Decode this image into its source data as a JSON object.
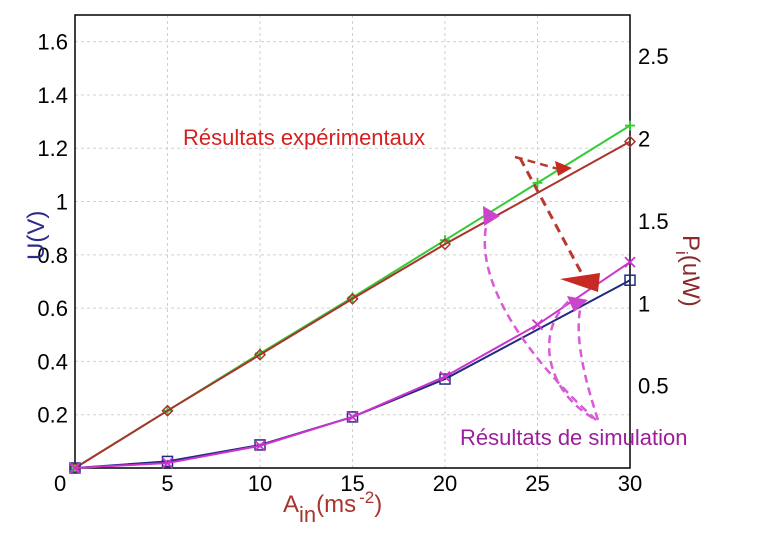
{
  "chart_data": {
    "type": "line",
    "x_axis": {
      "label_main": "A",
      "label_sub": "in",
      "label_unit": "(ms",
      "label_exp": "-2",
      "label_close": ")",
      "range": [
        0,
        30
      ],
      "ticks": [
        "0",
        "5",
        "10",
        "15",
        "20",
        "25",
        "30"
      ]
    },
    "y_left": {
      "label_main": "U",
      "label_unit": "(V)",
      "range": [
        0,
        1.7
      ],
      "ticks": [
        "0.2",
        "0.4",
        "0.6",
        "0.8",
        "1",
        "1.2",
        "1.4",
        "1.6"
      ]
    },
    "y_right": {
      "label_main": "P",
      "label_sub": "i",
      "label_unit": "(uW)",
      "range": [
        0,
        2.75
      ],
      "ticks": [
        "0.5",
        "1",
        "1.5",
        "2",
        "2.5"
      ]
    },
    "grid": true,
    "series": [
      {
        "key": "green_sim_voltage",
        "axis": "left",
        "color": "#33cc33",
        "marker": "plus",
        "x": [
          0,
          5,
          10,
          15,
          20,
          25,
          30
        ],
        "y": [
          0,
          0.215,
          0.43,
          0.64,
          0.855,
          1.07,
          1.285
        ]
      },
      {
        "key": "red_exp_voltage",
        "axis": "left",
        "color": "#a8342e",
        "marker": "diamond",
        "x": [
          0,
          5,
          10,
          15,
          20,
          30
        ],
        "y": [
          0,
          0.215,
          0.425,
          0.635,
          0.84,
          1.225
        ]
      },
      {
        "key": "navy_exp_power",
        "axis": "right",
        "color": "#1f2a80",
        "marker": "square",
        "x": [
          0,
          5,
          10,
          15,
          20,
          30
        ],
        "y": [
          0,
          0.04,
          0.14,
          0.31,
          0.54,
          1.14
        ]
      },
      {
        "key": "magenta_sim_power",
        "axis": "right",
        "color": "#cc33cc",
        "marker": "x",
        "x": [
          0,
          5,
          10,
          15,
          20,
          25,
          30
        ],
        "y": [
          0,
          0.03,
          0.135,
          0.31,
          0.555,
          0.87,
          1.25
        ]
      }
    ],
    "annotations": {
      "experimental": "Résultats expérimentaux",
      "simulation": "Résultats de simulation"
    },
    "colors": {
      "axis_left_label": "#2b2b8c",
      "axis_right_label": "#8b2a2a",
      "axis_x_label": "#a8342e",
      "annotation_red": "#d62020",
      "annotation_purple": "#9b1f9b",
      "arrow_red": "#b83a2e",
      "arrow_magenta": "#d85ad8"
    }
  }
}
